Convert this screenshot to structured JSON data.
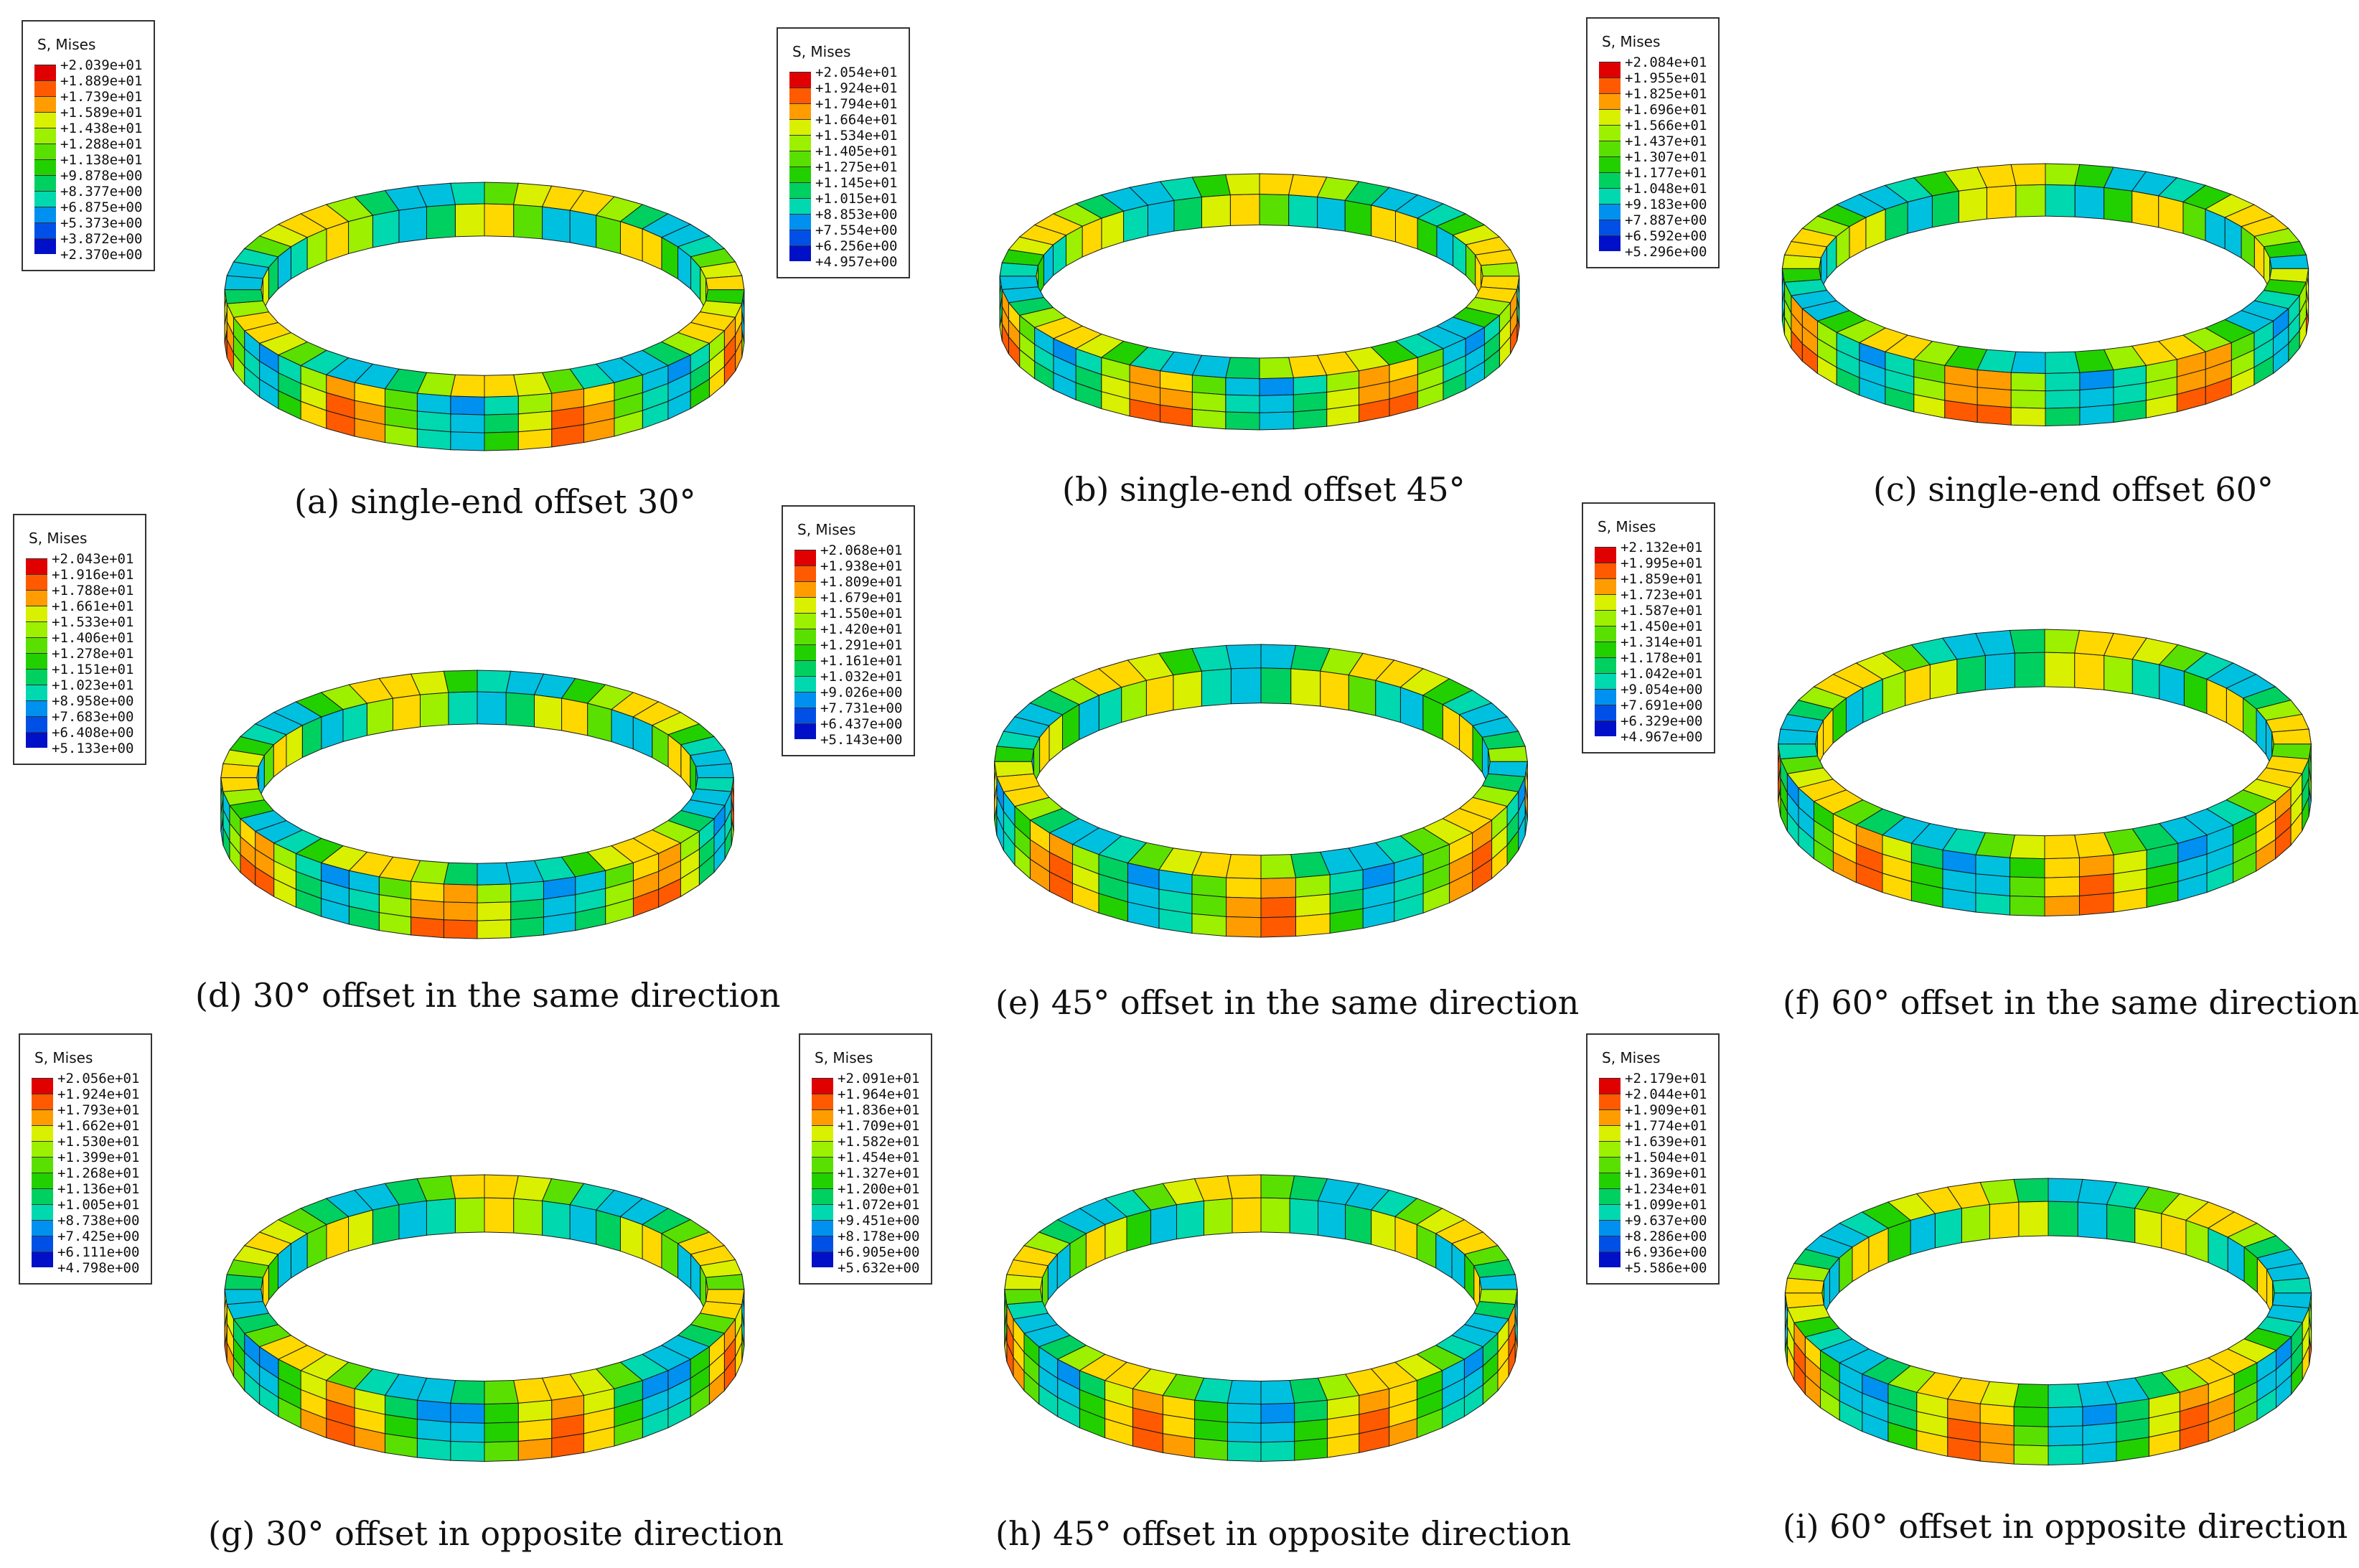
{
  "legend_title": "S, Mises",
  "colormap": [
    "#e00000",
    "#ff5a00",
    "#ff9c00",
    "#ffd800",
    "#d9f000",
    "#9cf000",
    "#5ae000",
    "#22d000",
    "#00d060",
    "#00d8b0",
    "#00c0e0",
    "#0090f0",
    "#0050e8",
    "#0010c8"
  ],
  "panels": [
    {
      "caption": "(a) single-end offset 30°",
      "legend": [
        "+2.039e+01",
        "+1.889e+01",
        "+1.739e+01",
        "+1.589e+01",
        "+1.438e+01",
        "+1.288e+01",
        "+1.138e+01",
        "+9.878e+00",
        "+8.377e+00",
        "+6.875e+00",
        "+5.373e+00",
        "+3.872e+00",
        "+2.370e+00"
      ]
    },
    {
      "caption": "(b) single-end offset 45°",
      "legend": [
        "+2.054e+01",
        "+1.924e+01",
        "+1.794e+01",
        "+1.664e+01",
        "+1.534e+01",
        "+1.405e+01",
        "+1.275e+01",
        "+1.145e+01",
        "+1.015e+01",
        "+8.853e+00",
        "+7.554e+00",
        "+6.256e+00",
        "+4.957e+00"
      ]
    },
    {
      "caption": "(c) single-end offset 60°",
      "legend": [
        "+2.084e+01",
        "+1.955e+01",
        "+1.825e+01",
        "+1.696e+01",
        "+1.566e+01",
        "+1.437e+01",
        "+1.307e+01",
        "+1.177e+01",
        "+1.048e+01",
        "+9.183e+00",
        "+7.887e+00",
        "+6.592e+00",
        "+5.296e+00"
      ]
    },
    {
      "caption": "(d) 30° offset in the same direction",
      "legend": [
        "+2.043e+01",
        "+1.916e+01",
        "+1.788e+01",
        "+1.661e+01",
        "+1.533e+01",
        "+1.406e+01",
        "+1.278e+01",
        "+1.151e+01",
        "+1.023e+01",
        "+8.958e+00",
        "+7.683e+00",
        "+6.408e+00",
        "+5.133e+00"
      ]
    },
    {
      "caption": "(e) 45° offset in the same direction",
      "legend": [
        "+2.068e+01",
        "+1.938e+01",
        "+1.809e+01",
        "+1.679e+01",
        "+1.550e+01",
        "+1.420e+01",
        "+1.291e+01",
        "+1.161e+01",
        "+1.032e+01",
        "+9.026e+00",
        "+7.731e+00",
        "+6.437e+00",
        "+5.143e+00"
      ]
    },
    {
      "caption": "(f) 60° offset in the same direction",
      "legend": [
        "+2.132e+01",
        "+1.995e+01",
        "+1.859e+01",
        "+1.723e+01",
        "+1.587e+01",
        "+1.450e+01",
        "+1.314e+01",
        "+1.178e+01",
        "+1.042e+01",
        "+9.054e+00",
        "+7.691e+00",
        "+6.329e+00",
        "+4.967e+00"
      ]
    },
    {
      "caption": "(g) 30° offset in opposite direction",
      "legend": [
        "+2.056e+01",
        "+1.924e+01",
        "+1.793e+01",
        "+1.662e+01",
        "+1.530e+01",
        "+1.399e+01",
        "+1.268e+01",
        "+1.136e+01",
        "+1.005e+01",
        "+8.738e+00",
        "+7.425e+00",
        "+6.111e+00",
        "+4.798e+00"
      ]
    },
    {
      "caption": "(h) 45° offset in opposite direction",
      "legend": [
        "+2.091e+01",
        "+1.964e+01",
        "+1.836e+01",
        "+1.709e+01",
        "+1.582e+01",
        "+1.454e+01",
        "+1.327e+01",
        "+1.200e+01",
        "+1.072e+01",
        "+9.451e+00",
        "+8.178e+00",
        "+6.905e+00",
        "+5.632e+00"
      ]
    },
    {
      "caption": "(i) 60° offset in opposite direction",
      "legend": [
        "+2.179e+01",
        "+2.044e+01",
        "+1.909e+01",
        "+1.774e+01",
        "+1.639e+01",
        "+1.504e+01",
        "+1.369e+01",
        "+1.234e+01",
        "+1.099e+01",
        "+9.637e+00",
        "+8.286e+00",
        "+6.936e+00",
        "+5.586e+00"
      ]
    }
  ]
}
